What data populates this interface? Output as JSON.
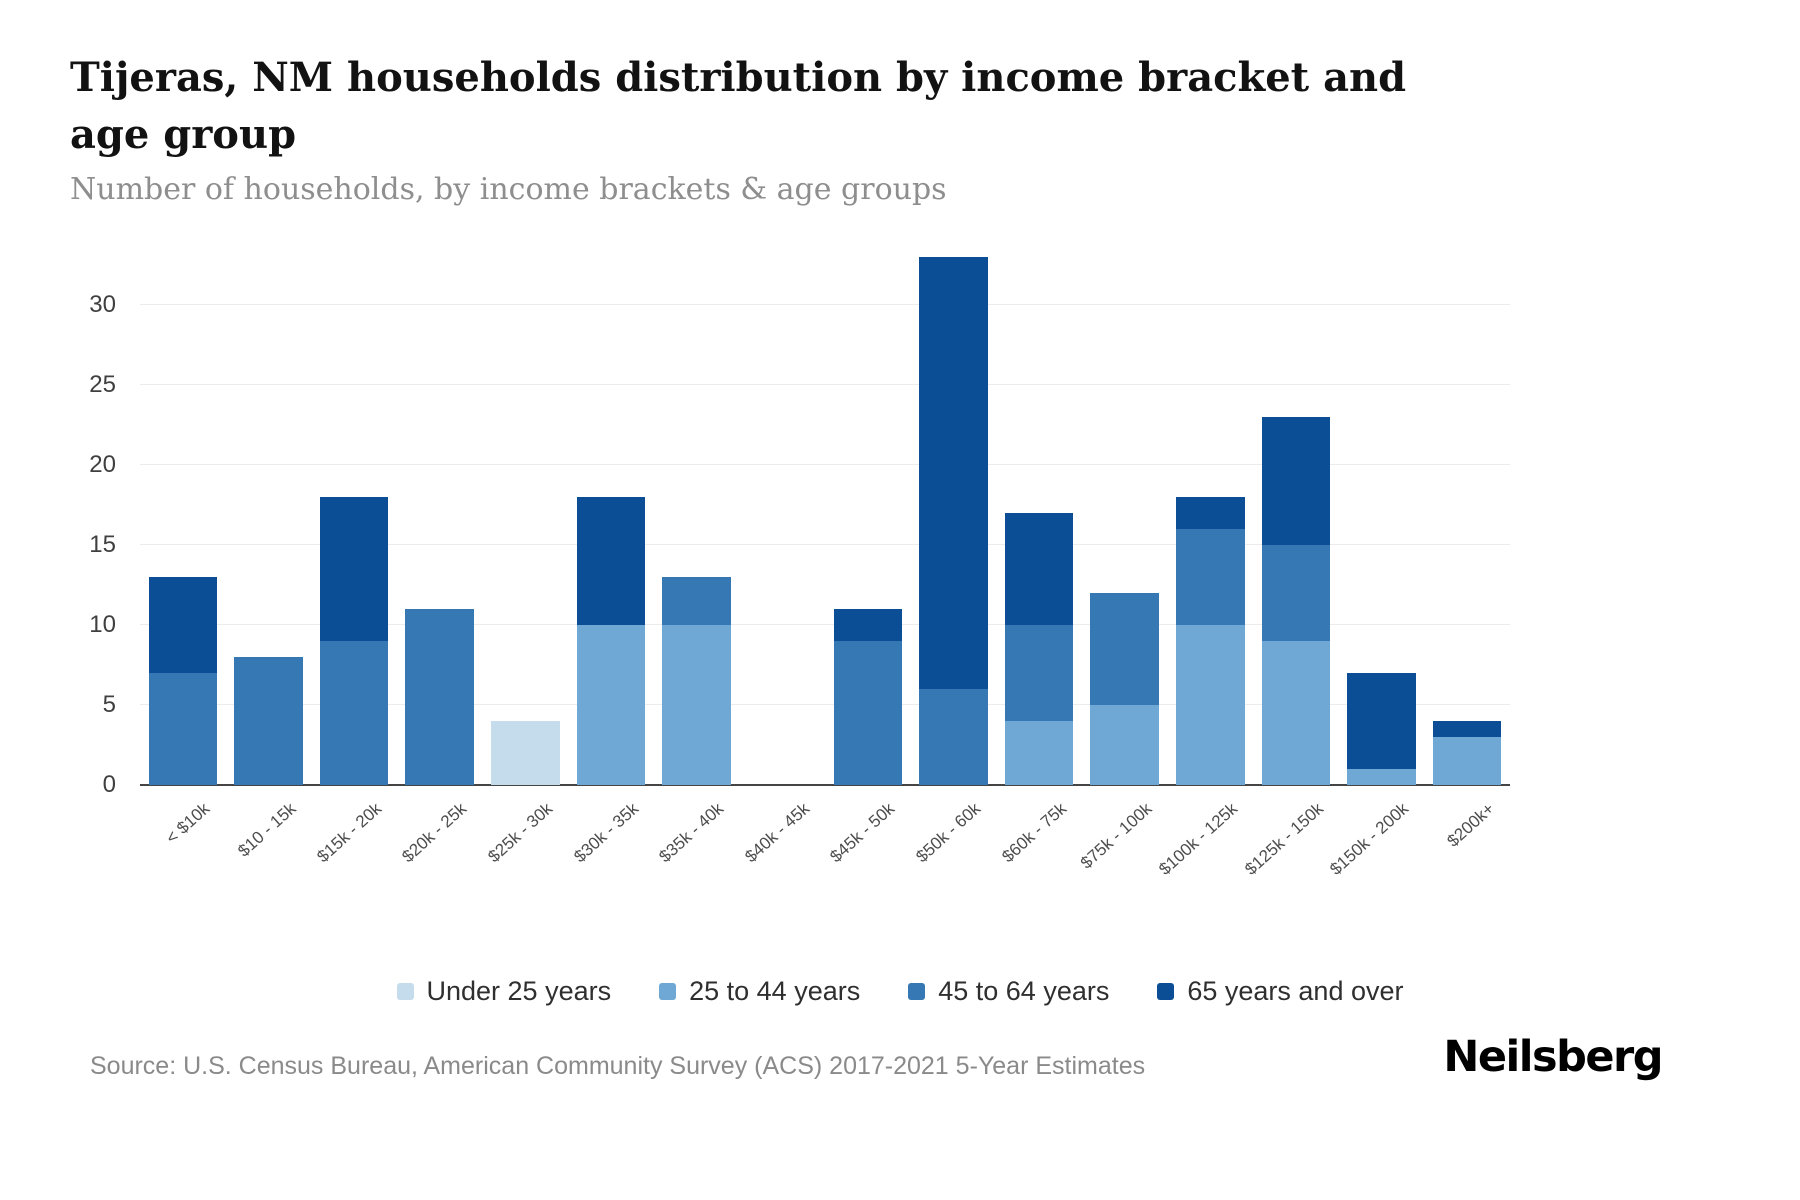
{
  "page": {
    "title": "Tijeras, NM households distribution by income bracket and age group",
    "subtitle": "Number of households, by income brackets & age groups",
    "source": "Source: U.S. Census Bureau, American Community Survey (ACS) 2017-2021 5-Year Estimates",
    "brand": "Neilsberg"
  },
  "chart_data": {
    "type": "bar",
    "stacked": true,
    "title": "Tijeras, NM households distribution by income bracket and age group",
    "xlabel": "",
    "ylabel": "Number of households",
    "ylim": [
      0,
      33
    ],
    "yticks": [
      0,
      5,
      10,
      15,
      20,
      25,
      30
    ],
    "grid": true,
    "legend_position": "bottom",
    "categories": [
      "< $10k",
      "$10 - 15k",
      "$15k - 20k",
      "$20k - 25k",
      "$25k - 30k",
      "$30k - 35k",
      "$35k - 40k",
      "$40k - 45k",
      "$45k - 50k",
      "$50k - 60k",
      "$60k - 75k",
      "$75k - 100k",
      "$100k - 125k",
      "$125k - 150k",
      "$150k - 200k",
      "$200k+"
    ],
    "series": [
      {
        "name": "Under 25 years",
        "color": "#c5dcec",
        "values": [
          0,
          0,
          0,
          0,
          4,
          0,
          0,
          0,
          0,
          0,
          0,
          0,
          0,
          0,
          0,
          0
        ]
      },
      {
        "name": "25 to 44 years",
        "color": "#6fa8d4",
        "values": [
          0,
          0,
          0,
          0,
          0,
          10,
          10,
          0,
          0,
          0,
          4,
          5,
          10,
          9,
          1,
          3
        ]
      },
      {
        "name": "45 to 64 years",
        "color": "#3678b4",
        "values": [
          7,
          8,
          9,
          11,
          0,
          0,
          3,
          0,
          9,
          6,
          6,
          7,
          6,
          6,
          0,
          0
        ]
      },
      {
        "name": "65 years and over",
        "color": "#0c4e95",
        "values": [
          6,
          0,
          9,
          0,
          0,
          8,
          0,
          0,
          2,
          27,
          7,
          0,
          2,
          8,
          6,
          1
        ]
      }
    ]
  }
}
